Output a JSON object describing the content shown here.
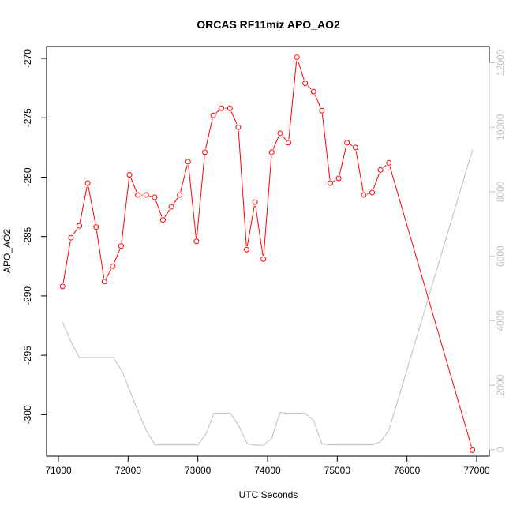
{
  "chart_data": {
    "type": "line",
    "title": "ORCAS RF11miz APO_AO2",
    "xlabel": "UTC Seconds",
    "ylabel": "APO_AO2",
    "xlim": [
      71000,
      77000
    ],
    "ylim": [
      -303.5,
      -269.0
    ],
    "y2lim": [
      -200,
      12500
    ],
    "x_ticks": [
      71000,
      72000,
      73000,
      74000,
      75000,
      76000,
      77000
    ],
    "y_ticks": [
      -270,
      -275,
      -280,
      -285,
      -290,
      -295,
      -300
    ],
    "y2_ticks": [
      0,
      2000,
      4000,
      6000,
      8000,
      10000,
      12000
    ],
    "grid": false,
    "series": [
      {
        "axis": "left",
        "color": "#ff0000",
        "markers": true,
        "x": [
          71060,
          71180,
          71300,
          71420,
          71540,
          71660,
          71780,
          71900,
          72020,
          72140,
          72260,
          72380,
          72500,
          72620,
          72740,
          72860,
          72980,
          73100,
          73220,
          73340,
          73460,
          73580,
          73700,
          73820,
          73940,
          74060,
          74180,
          74300,
          74420,
          74540,
          74660,
          74780,
          74900,
          75020,
          75140,
          75260,
          75380,
          75500,
          75620,
          75740,
          76940
        ],
        "values": [
          -289.2,
          -285.1,
          -284.1,
          -280.5,
          -284.2,
          -288.8,
          -287.5,
          -285.8,
          -279.8,
          -281.5,
          -281.5,
          -281.7,
          -283.6,
          -282.5,
          -281.5,
          -278.7,
          -285.4,
          -277.9,
          -274.8,
          -274.2,
          -274.2,
          -275.8,
          -286.1,
          -282.1,
          -286.9,
          -277.9,
          -276.3,
          -277.1,
          -269.9,
          -272.1,
          -272.8,
          -274.4,
          -280.5,
          -280.1,
          -277.1,
          -277.5,
          -281.5,
          -281.3,
          -279.4,
          -278.8,
          -303.0
        ]
      },
      {
        "axis": "right",
        "color": "#bebebe",
        "markers": false,
        "x": [
          71060,
          71180,
          71300,
          71420,
          71540,
          71660,
          71790,
          71920,
          72020,
          72150,
          72270,
          72390,
          72500,
          72620,
          72750,
          72870,
          73000,
          73120,
          73230,
          73350,
          73470,
          73590,
          73710,
          73820,
          73940,
          74060,
          74180,
          74300,
          74420,
          74540,
          74660,
          74780,
          74900,
          75020,
          75140,
          75260,
          75380,
          75500,
          75620,
          75740,
          76940
        ],
        "values": [
          3950,
          3350,
          2860,
          2860,
          2860,
          2860,
          2860,
          2400,
          1850,
          1150,
          550,
          150,
          150,
          150,
          150,
          150,
          150,
          500,
          1130,
          1130,
          1130,
          730,
          180,
          140,
          140,
          360,
          1160,
          1130,
          1130,
          1130,
          910,
          180,
          150,
          150,
          150,
          150,
          150,
          150,
          250,
          600,
          9300
        ]
      }
    ]
  }
}
